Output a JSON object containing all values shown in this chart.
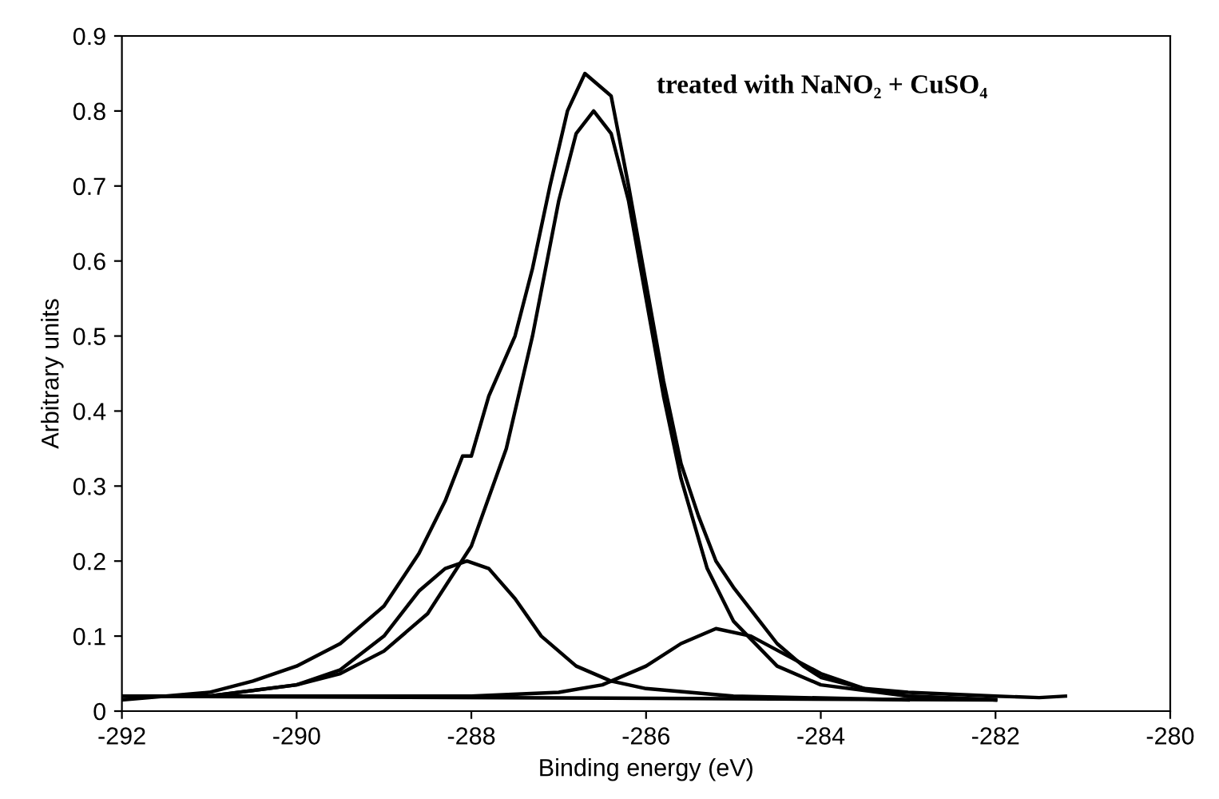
{
  "chart_data": {
    "type": "line",
    "annotations": [
      "treated with NaNO₂ + CuSO₄"
    ],
    "xlabel": "Binding energy (eV)",
    "ylabel": "Arbitrary units",
    "xlim": [
      -292,
      -280
    ],
    "xticks": [
      -292,
      -290,
      -288,
      -286,
      -284,
      -282,
      -280
    ],
    "ylim": [
      0,
      0.9
    ],
    "yticks": [
      0,
      0.1,
      0.2,
      0.3,
      0.4,
      0.5,
      0.6,
      0.7,
      0.8,
      0.9
    ],
    "grid": false,
    "legend": false,
    "marker": "none",
    "line_style": "solid",
    "series": [
      {
        "color": "#000000",
        "x": [
          -292,
          -291.5,
          -291,
          -290.5,
          -290,
          -289.5,
          -289,
          -288.6,
          -288.3,
          -288.1,
          -288.0,
          -287.8,
          -287.5,
          -287.3,
          -287.1,
          -286.9,
          -286.7,
          -286.4,
          -286.2,
          -286.0,
          -285.8,
          -285.6,
          -285.4,
          -285.2,
          -285.0,
          -284.7,
          -284.5,
          -284.2,
          -284.0,
          -283.5,
          -283,
          -282,
          -281.5,
          -281.2
        ],
        "values": [
          0.015,
          0.02,
          0.025,
          0.04,
          0.06,
          0.09,
          0.14,
          0.21,
          0.28,
          0.34,
          0.34,
          0.42,
          0.5,
          0.59,
          0.7,
          0.8,
          0.85,
          0.82,
          0.7,
          0.57,
          0.44,
          0.33,
          0.26,
          0.2,
          0.165,
          0.12,
          0.09,
          0.06,
          0.045,
          0.03,
          0.025,
          0.02,
          0.018,
          0.02
        ]
      },
      {
        "color": "#000000",
        "x": [
          -291,
          -290,
          -289.5,
          -289,
          -288.5,
          -288,
          -287.6,
          -287.3,
          -287,
          -286.8,
          -286.6,
          -286.4,
          -286.2,
          -286.0,
          -285.8,
          -285.6,
          -285.3,
          -285.0,
          -284.5,
          -284,
          -283,
          -282
        ],
        "values": [
          0.02,
          0.035,
          0.05,
          0.08,
          0.13,
          0.22,
          0.35,
          0.5,
          0.68,
          0.77,
          0.8,
          0.77,
          0.68,
          0.55,
          0.42,
          0.31,
          0.19,
          0.12,
          0.06,
          0.035,
          0.02,
          0.015
        ]
      },
      {
        "color": "#000000",
        "x": [
          -291,
          -290,
          -289.5,
          -289,
          -288.6,
          -288.3,
          -288.05,
          -287.8,
          -287.5,
          -287.2,
          -286.8,
          -286.4,
          -286,
          -285,
          -283
        ],
        "values": [
          0.02,
          0.035,
          0.055,
          0.1,
          0.16,
          0.19,
          0.2,
          0.19,
          0.15,
          0.1,
          0.06,
          0.04,
          0.03,
          0.02,
          0.015
        ]
      },
      {
        "color": "#000000",
        "x": [
          -292,
          -288,
          -287,
          -286.5,
          -286,
          -285.6,
          -285.2,
          -284.8,
          -284.4,
          -284,
          -283.5,
          -283,
          -282
        ],
        "values": [
          0.02,
          0.02,
          0.025,
          0.035,
          0.06,
          0.09,
          0.11,
          0.1,
          0.075,
          0.05,
          0.03,
          0.02,
          0.015
        ]
      },
      {
        "color": "#000000",
        "x": [
          -292,
          -282
        ],
        "values": [
          0.02,
          0.015
        ]
      }
    ]
  }
}
